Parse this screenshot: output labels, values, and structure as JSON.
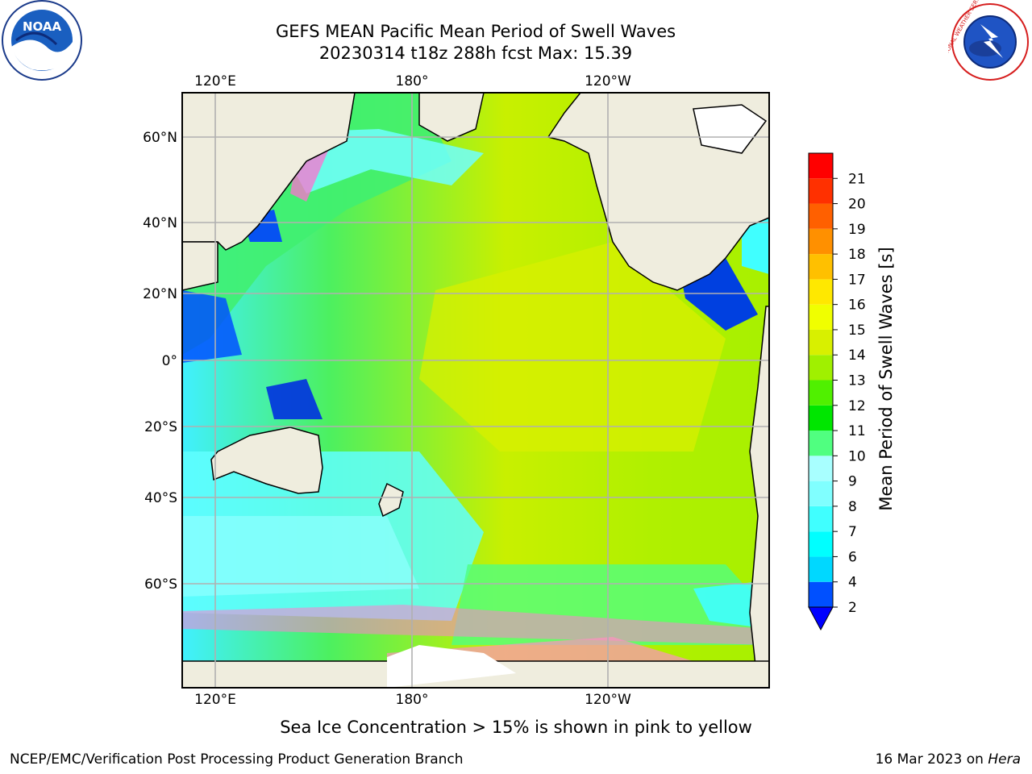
{
  "header": {
    "title": "GEFS MEAN Pacific Mean Period of Swell Waves",
    "subtitle": "20230314 t18z 288h fcst   Max: 15.39"
  },
  "map": {
    "lon_labels_top": [
      "120°E",
      "180°",
      "120°W"
    ],
    "lon_labels_bottom": [
      "120°E",
      "180°",
      "120°W"
    ],
    "lat_labels": [
      "60°N",
      "40°N",
      "20°N",
      "0°",
      "20°S",
      "40°S",
      "60°S"
    ],
    "land_color": "#efedde",
    "grid_color": "#b0b0b0"
  },
  "colorbar": {
    "label": "Mean Period of Swell Waves [s]",
    "ticks": [
      "2",
      "4",
      "6",
      "7",
      "8",
      "9",
      "10",
      "11",
      "12",
      "13",
      "14",
      "15",
      "16",
      "17",
      "18",
      "19",
      "20",
      "21"
    ],
    "colors": [
      "#0050ff",
      "#00d8ff",
      "#00ffff",
      "#40ffff",
      "#80ffff",
      "#a8ffff",
      "#50ff80",
      "#00e600",
      "#50f000",
      "#a0f000",
      "#d8f000",
      "#f0ff00",
      "#ffe800",
      "#ffc000",
      "#ff9000",
      "#ff6000",
      "#ff3000",
      "#ff0000"
    ],
    "under_color": "#0000ff"
  },
  "notes": {
    "ice": "Sea Ice Concentration > 15% is shown in pink to yellow",
    "credit": "NCEP/EMC/Verification Post Processing Product Generation Branch",
    "date": "16 Mar 2023 on ",
    "machine": "Hera"
  },
  "logos": {
    "noaa_text": "NOAA",
    "nws_text": "NATIONAL WEATHER SERVICE"
  }
}
